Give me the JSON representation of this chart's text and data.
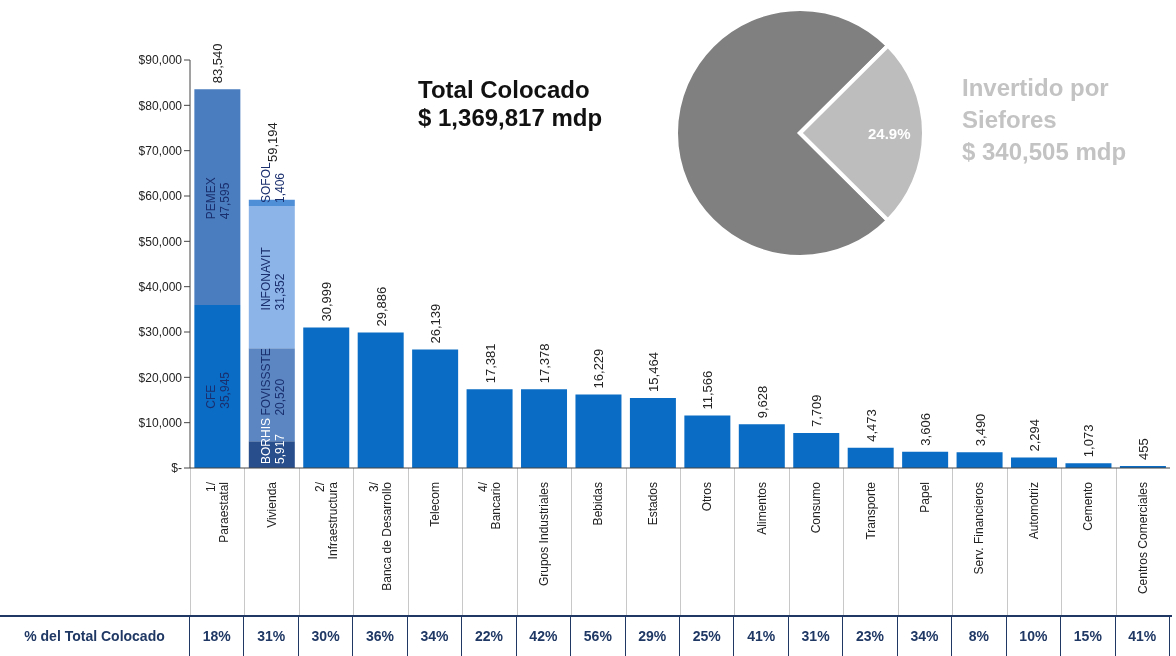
{
  "chart_data": [
    {
      "type": "bar",
      "stacked": true,
      "categories": [
        "1/\nParaestatal",
        "Vivienda",
        "2/\nInfraestructura",
        "3/\nBanca de Desarrollo",
        "Telecom",
        "4/\nBancario",
        "Grupos Industriales",
        "Bebidas",
        "Estados",
        "Otros",
        "Alimentos",
        "Consumo",
        "Transporte",
        "Papel",
        "Serv. Financieros",
        "Automotriz",
        "Cemento",
        "Centros Comerciales"
      ],
      "series": [
        {
          "colors": [
            "#0a6cc4",
            "#284f8c",
            "#0a6cc4",
            "#0a6cc4",
            "#0a6cc4",
            "#0a6cc4",
            "#0a6cc4",
            "#0a6cc4",
            "#0a6cc4",
            "#0a6cc4",
            "#0a6cc4",
            "#0a6cc4",
            "#0a6cc4",
            "#0a6cc4",
            "#0a6cc4",
            "#0a6cc4",
            "#0a6cc4",
            "#0a6cc4"
          ],
          "values": [
            35945,
            5917,
            30999,
            29886,
            26139,
            17381,
            17378,
            16229,
            15464,
            11566,
            9628,
            7709,
            4473,
            3606,
            3490,
            2294,
            1073,
            455
          ],
          "value_labels": [
            "CFE\n35,945",
            "BORHIS\n5,917",
            null,
            null,
            null,
            null,
            null,
            null,
            null,
            null,
            null,
            null,
            null,
            null,
            null,
            null,
            null,
            null
          ]
        },
        {
          "colors": [
            "#4a7dbf",
            "#5b86c2",
            null,
            null,
            null,
            null,
            null,
            null,
            null,
            null,
            null,
            null,
            null,
            null,
            null,
            null,
            null,
            null
          ],
          "values": [
            47595,
            20520,
            null,
            null,
            null,
            null,
            null,
            null,
            null,
            null,
            null,
            null,
            null,
            null,
            null,
            null,
            null,
            null
          ],
          "value_labels": [
            "PEMEX\n47,595",
            "FOVISSSTE\n20,520",
            null,
            null,
            null,
            null,
            null,
            null,
            null,
            null,
            null,
            null,
            null,
            null,
            null,
            null,
            null,
            null
          ]
        },
        {
          "color": "#8db4e8",
          "values": [
            null,
            31352,
            null,
            null,
            null,
            null,
            null,
            null,
            null,
            null,
            null,
            null,
            null,
            null,
            null,
            null,
            null,
            null
          ],
          "value_labels": [
            null,
            "INFONAVIT\n31,352",
            null,
            null,
            null,
            null,
            null,
            null,
            null,
            null,
            null,
            null,
            null,
            null,
            null,
            null,
            null,
            null
          ]
        },
        {
          "color": "#4f8fd8",
          "values": [
            null,
            1406,
            null,
            null,
            null,
            null,
            null,
            null,
            null,
            null,
            null,
            null,
            null,
            null,
            null,
            null,
            null,
            null
          ],
          "value_labels": [
            null,
            "SOFOL\n1,406",
            null,
            null,
            null,
            null,
            null,
            null,
            null,
            null,
            null,
            null,
            null,
            null,
            null,
            null,
            null,
            null
          ]
        }
      ],
      "totals": [
        "83,540",
        "59,194",
        "30,999",
        "29,886",
        "26,139",
        "17,381",
        "17,378",
        "16,229",
        "15,464",
        "11,566",
        "9,628",
        "7,709",
        "4,473",
        "3,606",
        "3,490",
        "2,294",
        "1,073",
        "455"
      ],
      "ylim": [
        0,
        90000
      ],
      "yticks": [
        {
          "value": 0,
          "label": "$-"
        },
        {
          "value": 10000,
          "label": "$10,000"
        },
        {
          "value": 20000,
          "label": "$20,000"
        },
        {
          "value": 30000,
          "label": "$30,000"
        },
        {
          "value": 40000,
          "label": "$40,000"
        },
        {
          "value": 50000,
          "label": "$50,000"
        },
        {
          "value": 60000,
          "label": "$60,000"
        },
        {
          "value": 70000,
          "label": "$70,000"
        },
        {
          "value": 80000,
          "label": "$80,000"
        },
        {
          "value": 90000,
          "label": "$90,000"
        }
      ],
      "annotations": [
        "Total Colocado",
        "$ 1,369,817 mdp",
        "% del Total Colocado",
        {
          "text": "18%"
        },
        {
          "text": "31%"
        },
        {
          "text": "30%"
        },
        {
          "text": "36%"
        },
        {
          "text": "34%"
        },
        {
          "text": "22%"
        },
        {
          "text": "42%"
        },
        {
          "text": "56%"
        },
        {
          "text": "29%"
        },
        {
          "text": "25%"
        },
        {
          "text": "41%"
        },
        {
          "text": "31%"
        },
        {
          "text": "23%"
        },
        {
          "text": "34%"
        },
        {
          "text": "8%"
        },
        {
          "text": "10%"
        },
        {
          "text": "15%"
        },
        {
          "text": "41%"
        }
      ]
    },
    {
      "type": "pie",
      "categories": [
        null,
        null
      ],
      "values": [
        75.1,
        24.9
      ],
      "colors": [
        "#808080",
        "#bdbdbd"
      ],
      "value_labels": [
        null,
        "24.9%"
      ],
      "annotations": [
        "Invertido por\nSiefores",
        "$ 340,505 mdp"
      ]
    }
  ]
}
